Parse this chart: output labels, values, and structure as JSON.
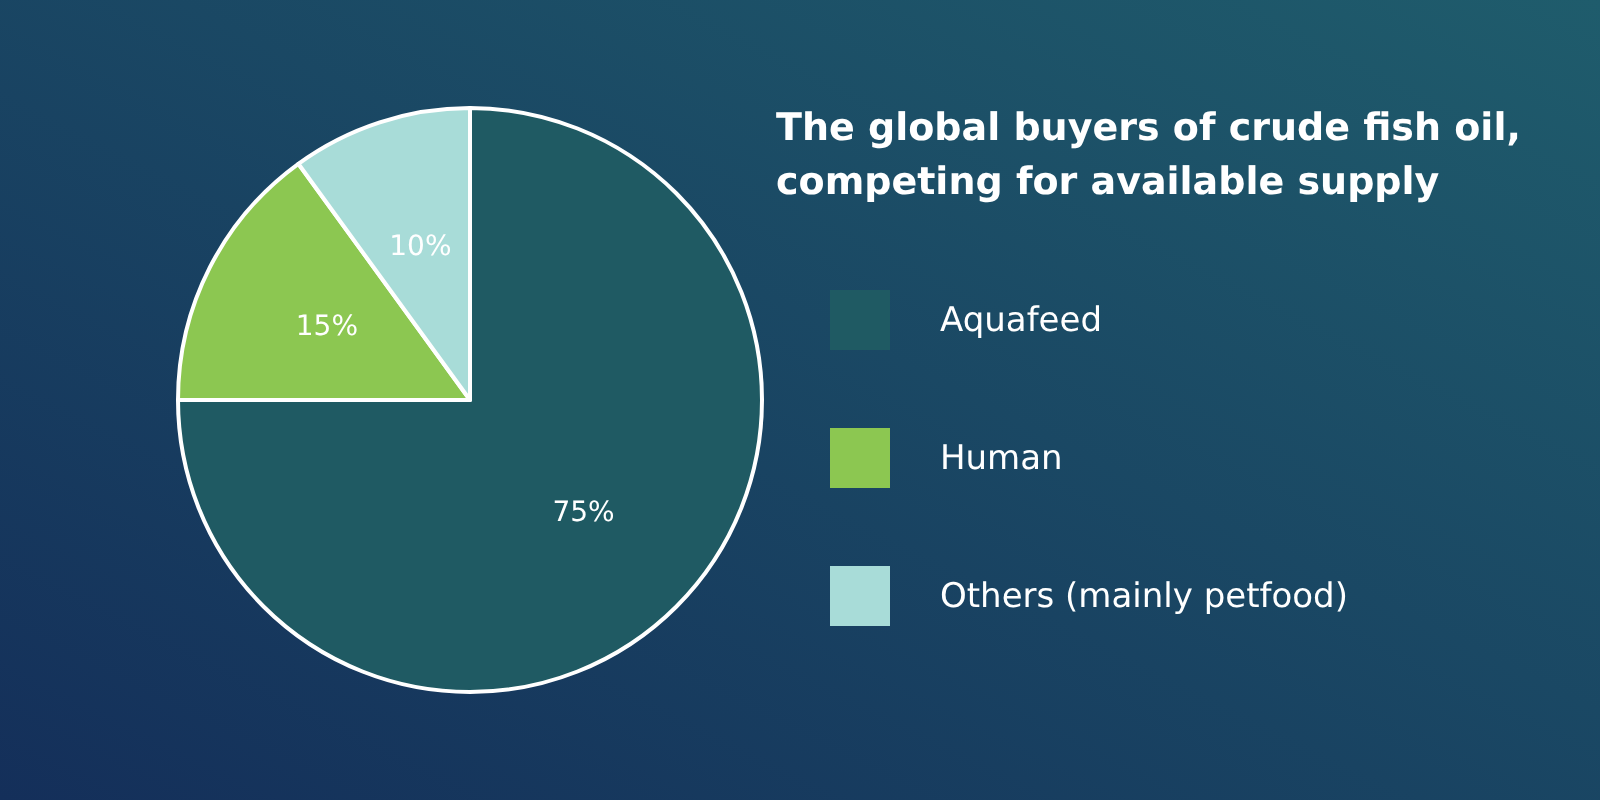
{
  "chart_data": {
    "type": "pie",
    "title": "The global buyers of crude fish oil, competing for available supply",
    "categories": [
      "Aquafeed",
      "Human",
      "Others (mainly petfood)"
    ],
    "values": [
      75,
      15,
      10
    ],
    "colors": [
      "#1f5a63",
      "#8cc751",
      "#a8dcd8"
    ],
    "value_labels": [
      "75%",
      "15%",
      "10%"
    ],
    "legend": "right"
  }
}
